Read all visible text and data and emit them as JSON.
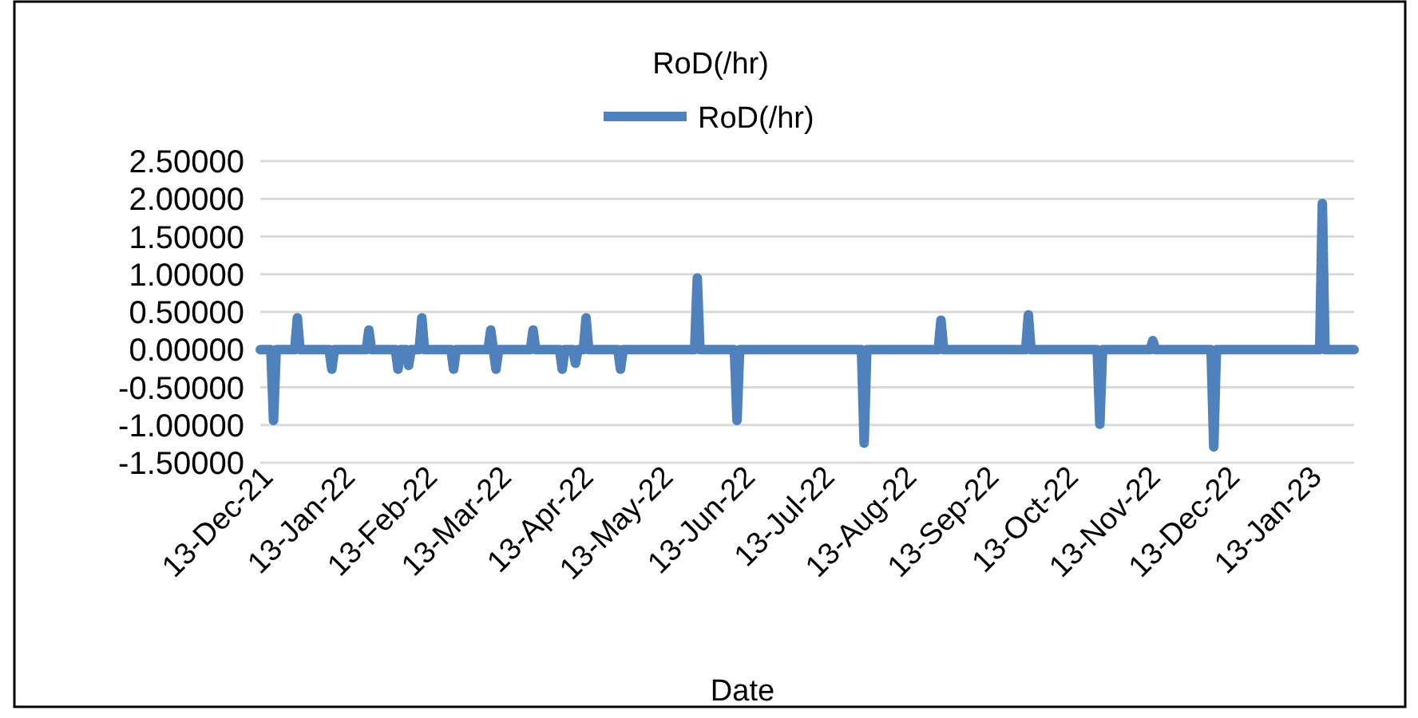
{
  "chart_data": {
    "type": "line",
    "title": "RoD(/hr)",
    "xlabel": "Date",
    "legend": "top",
    "grid": "y",
    "xlim": [
      "2021-12-10",
      "2023-01-27"
    ],
    "xticks": [
      {
        "value": "2021-12-13",
        "label": "13-Dec-21"
      },
      {
        "value": "2022-01-13",
        "label": "13-Jan-22"
      },
      {
        "value": "2022-02-13",
        "label": "13-Feb-22"
      },
      {
        "value": "2022-03-13",
        "label": "13-Mar-22"
      },
      {
        "value": "2022-04-13",
        "label": "13-Apr-22"
      },
      {
        "value": "2022-05-13",
        "label": "13-May-22"
      },
      {
        "value": "2022-06-13",
        "label": "13-Jun-22"
      },
      {
        "value": "2022-07-13",
        "label": "13-Jul-22"
      },
      {
        "value": "2022-08-13",
        "label": "13-Aug-22"
      },
      {
        "value": "2022-09-13",
        "label": "13-Sep-22"
      },
      {
        "value": "2022-10-13",
        "label": "13-Oct-22"
      },
      {
        "value": "2022-11-13",
        "label": "13-Nov-22"
      },
      {
        "value": "2022-12-13",
        "label": "13-Dec-22"
      },
      {
        "value": "2023-01-13",
        "label": "13-Jan-23"
      }
    ],
    "ylim": [
      -1.5,
      2.5
    ],
    "yticks": [
      {
        "value": -1.5,
        "label": "-1.50000"
      },
      {
        "value": -1,
        "label": "-1.00000"
      },
      {
        "value": -0.5,
        "label": "-0.50000"
      },
      {
        "value": 0,
        "label": "0.00000"
      },
      {
        "value": 0.5,
        "label": "0.50000"
      },
      {
        "value": 1,
        "label": "1.00000"
      },
      {
        "value": 1.5,
        "label": "1.50000"
      },
      {
        "value": 2,
        "label": "2.00000"
      },
      {
        "value": 2.5,
        "label": "2.50000"
      }
    ],
    "series": [
      {
        "name": "RoD(/hr)",
        "color": "#4f81bd",
        "x": [
          "2021-12-10",
          "2021-12-14",
          "2021-12-15",
          "2021-12-16",
          "2021-12-23",
          "2021-12-24",
          "2021-12-25",
          "2022-01-05",
          "2022-01-06",
          "2022-01-07",
          "2022-01-19",
          "2022-01-20",
          "2022-01-21",
          "2022-01-30",
          "2022-01-31",
          "2022-02-01",
          "2022-02-03",
          "2022-02-04",
          "2022-02-05",
          "2022-02-08",
          "2022-02-09",
          "2022-02-10",
          "2022-02-20",
          "2022-02-21",
          "2022-02-22",
          "2022-03-06",
          "2022-03-07",
          "2022-03-08",
          "2022-03-09",
          "2022-03-10",
          "2022-03-22",
          "2022-03-23",
          "2022-03-24",
          "2022-04-02",
          "2022-04-03",
          "2022-04-04",
          "2022-04-07",
          "2022-04-08",
          "2022-04-09",
          "2022-04-11",
          "2022-04-12",
          "2022-04-13",
          "2022-04-24",
          "2022-04-25",
          "2022-04-26",
          "2022-05-23",
          "2022-05-24",
          "2022-05-25",
          "2022-06-07",
          "2022-06-08",
          "2022-06-09",
          "2022-07-25",
          "2022-07-26",
          "2022-07-27",
          "2022-08-23",
          "2022-08-24",
          "2022-08-25",
          "2022-09-25",
          "2022-09-26",
          "2022-09-27",
          "2022-10-22",
          "2022-10-23",
          "2022-10-24",
          "2022-11-11",
          "2022-11-12",
          "2022-11-13",
          "2022-12-04",
          "2022-12-05",
          "2022-12-06",
          "2023-01-14",
          "2023-01-15",
          "2023-01-16",
          "2023-01-27"
        ],
        "values": [
          0,
          0,
          -0.94,
          0,
          0,
          0.42,
          0,
          0,
          -0.26,
          0,
          0,
          0.26,
          0,
          0,
          -0.26,
          0,
          0,
          -0.21,
          0,
          0,
          0.42,
          0,
          0,
          -0.26,
          0,
          0,
          0.26,
          0,
          -0.26,
          0,
          0,
          0.26,
          0,
          0,
          -0.26,
          0,
          0,
          -0.18,
          0,
          0,
          0.42,
          0,
          0,
          -0.26,
          0,
          0,
          0.95,
          0,
          0,
          -0.94,
          0,
          0,
          -1.24,
          0,
          0,
          0.39,
          0,
          0,
          0.46,
          0,
          0,
          -0.99,
          0,
          0,
          0.12,
          0,
          0,
          -1.29,
          0,
          0,
          1.94,
          0,
          0
        ]
      }
    ]
  }
}
